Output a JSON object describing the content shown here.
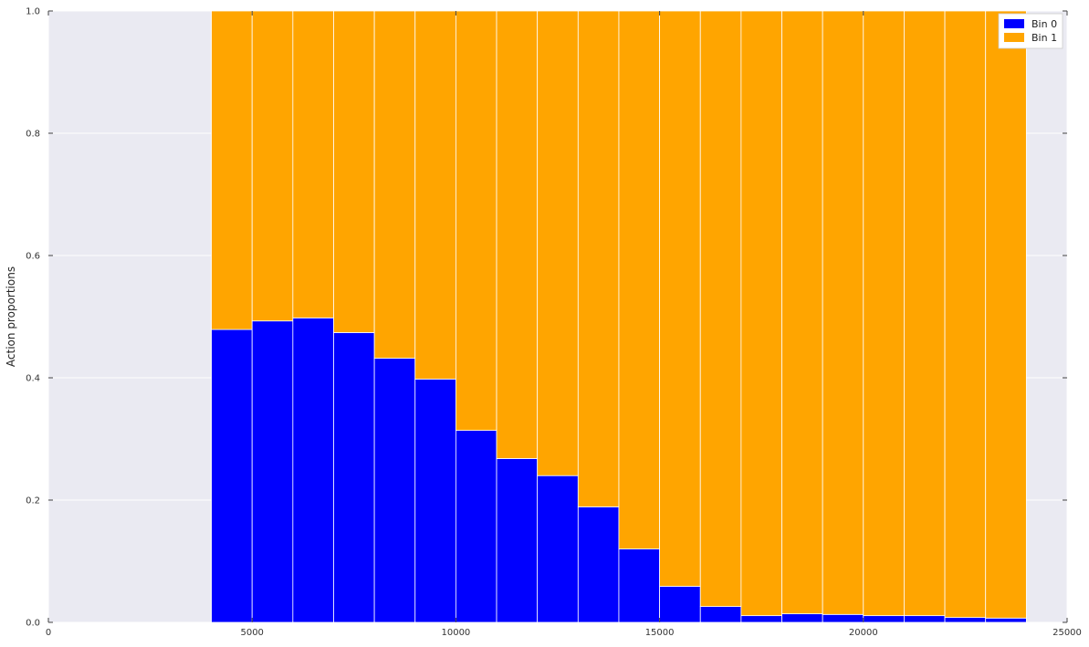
{
  "chart_data": {
    "type": "bar",
    "stacked": true,
    "x": [
      4500,
      5500,
      6500,
      7500,
      8500,
      9500,
      10500,
      11500,
      12500,
      13500,
      14500,
      15500,
      16500,
      17500,
      18500,
      19500,
      20500,
      21500,
      22500,
      23500
    ],
    "bin_width": 1000,
    "series": [
      {
        "name": "Bin 0",
        "color": "#0000ff",
        "values": [
          0.479,
          0.493,
          0.498,
          0.474,
          0.432,
          0.398,
          0.314,
          0.268,
          0.24,
          0.189,
          0.12,
          0.059,
          0.026,
          0.011,
          0.014,
          0.013,
          0.011,
          0.011,
          0.008,
          0.007
        ]
      },
      {
        "name": "Bin 1",
        "color": "#ffa500",
        "values": [
          0.521,
          0.507,
          0.502,
          0.526,
          0.568,
          0.602,
          0.686,
          0.732,
          0.76,
          0.811,
          0.88,
          0.941,
          0.974,
          0.989,
          0.986,
          0.987,
          0.989,
          0.989,
          0.992,
          0.993
        ]
      }
    ],
    "xlim": [
      0,
      25000
    ],
    "ylim": [
      0,
      1.0
    ],
    "xticks": [
      "0",
      "5000",
      "10000",
      "15000",
      "20000",
      "25000"
    ],
    "yticks": [
      "0.0",
      "0.2",
      "0.4",
      "0.6",
      "0.8",
      "1.0"
    ],
    "title": "",
    "xlabel": "",
    "ylabel": "Action proportions",
    "grid": true,
    "legend_position": "top-right",
    "background": "#eaeaf2"
  }
}
